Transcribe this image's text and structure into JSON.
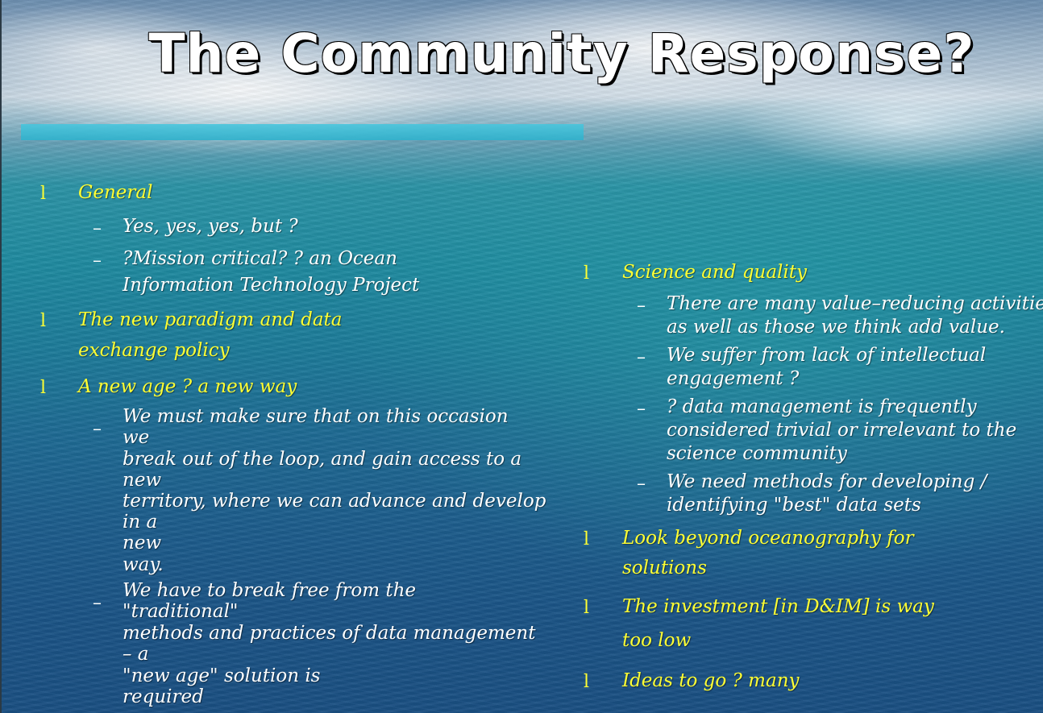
{
  "title": "The Community Response?",
  "bullet_marker": "l",
  "dash_marker": "–",
  "left": {
    "general": {
      "label": "General",
      "sub1": "Yes, yes, yes, but ?",
      "sub2_l1": "?Mission critical? ? an Ocean",
      "sub2_l2": "Information Technology Project"
    },
    "paradigm": {
      "l1": "The new paradigm and data",
      "l2": "exchange policy"
    },
    "new_age": {
      "label": "A new age ? a new way",
      "sub1": [
        "We must make sure that on this occasion",
        "we",
        "break out of the loop, and gain access to a",
        "new",
        "territory, where we can advance and develop",
        "in a",
        "new",
        "way."
      ],
      "sub2": [
        "We have to break free from the",
        "\"traditional\"",
        "methods and practices of data management",
        "– a",
        "\"new age\" solution is",
        "required"
      ]
    }
  },
  "right": {
    "science": {
      "label": "Science and quality",
      "sub1_l1": "There are many value–reducing activities",
      "sub1_l2": "as well as those we think add value.",
      "sub2_l1": "We suffer from lack of intellectual",
      "sub2_l2": "engagement ?",
      "sub3_l1": "? data management is frequently",
      "sub3_l2": "considered trivial or irrelevant to the",
      "sub3_l3": "science community",
      "sub4_l1": "We need methods for developing /",
      "sub4_l2": "identifying \"best\" data sets"
    },
    "beyond": {
      "l1": "Look beyond oceanography for",
      "l2": "solutions"
    },
    "investment": {
      "l1": "The investment [in D&IM] is way",
      "l2": "too low"
    },
    "ideas": {
      "label": "Ideas to go ? many"
    }
  },
  "colors": {
    "heading": "#ffff33",
    "body": "#ffffff",
    "title": "#ffffff",
    "rule": "#49c6dd"
  }
}
